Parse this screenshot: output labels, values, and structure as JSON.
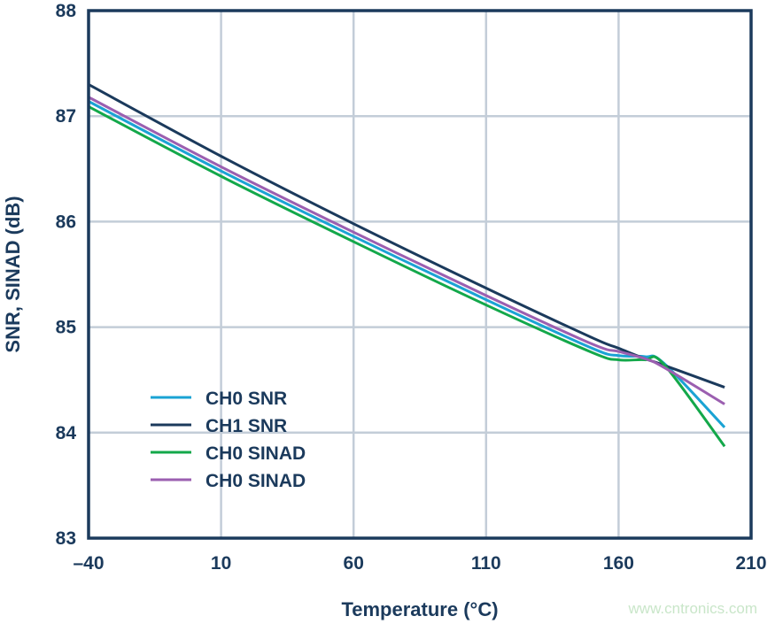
{
  "chart_data": {
    "type": "line",
    "title": "",
    "xlabel": "Temperature (°C)",
    "ylabel": "SNR, SINAD (dB)",
    "xlim": [
      -40,
      210
    ],
    "ylim": [
      83,
      88
    ],
    "xticks": [
      -40,
      10,
      60,
      110,
      160,
      210
    ],
    "xtick_labels": [
      "–40",
      "10",
      "60",
      "110",
      "160",
      "210"
    ],
    "yticks": [
      83,
      84,
      85,
      86,
      87,
      88
    ],
    "grid": true,
    "legend_position": "lower-left",
    "x": [
      -40,
      10,
      60,
      110,
      150,
      160,
      170,
      177,
      200
    ],
    "series": [
      {
        "name": "CH0 SNR",
        "color": "#1aa3d4",
        "values": [
          87.14,
          86.48,
          85.86,
          85.26,
          84.8,
          84.73,
          84.72,
          84.66,
          84.05
        ]
      },
      {
        "name": "CH1 SNR",
        "color": "#1b3a5c",
        "values": [
          87.3,
          86.62,
          85.98,
          85.37,
          84.9,
          84.8,
          84.7,
          84.64,
          84.43
        ]
      },
      {
        "name": "CH0 SINAD",
        "color": "#13a84a",
        "values": [
          87.09,
          86.43,
          85.81,
          85.21,
          84.76,
          84.69,
          84.69,
          84.65,
          83.87
        ]
      },
      {
        "name": "CH0 SINAD",
        "color": "#9b5fb0",
        "values": [
          87.18,
          86.52,
          85.9,
          85.3,
          84.84,
          84.77,
          84.7,
          84.62,
          84.27
        ]
      }
    ]
  },
  "watermark": "www.cntronics.com"
}
